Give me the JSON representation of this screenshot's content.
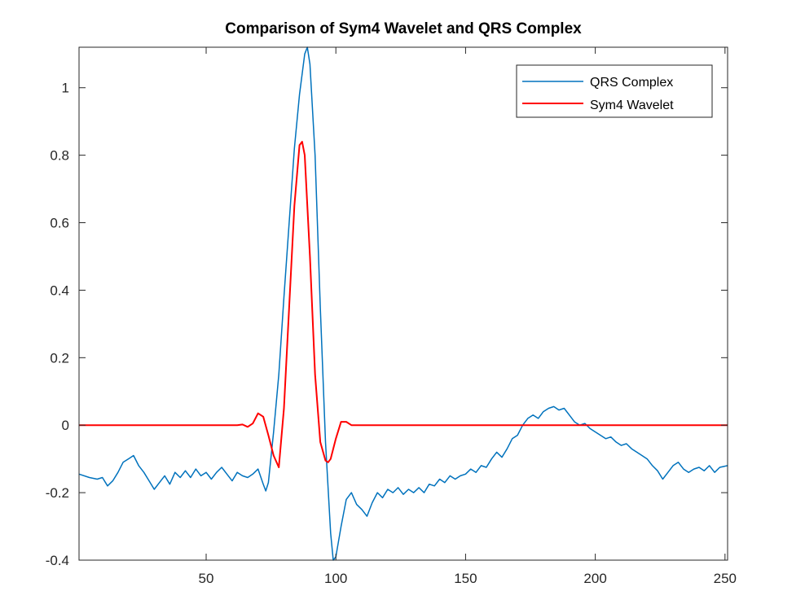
{
  "chart_data": {
    "type": "line",
    "title": "Comparison of Sym4 Wavelet and QRS Complex",
    "xlabel": "",
    "ylabel": "",
    "xlim": [
      1,
      251
    ],
    "ylim": [
      -0.4,
      1.12
    ],
    "x_ticks": [
      50,
      100,
      150,
      200,
      250
    ],
    "y_ticks": [
      -0.4,
      -0.2,
      0,
      0.2,
      0.4,
      0.6,
      0.8,
      1
    ],
    "x_tick_labels": [
      "50",
      "100",
      "150",
      "200",
      "250"
    ],
    "y_tick_labels": [
      "-0.4",
      "-0.2",
      "0",
      "0.2",
      "0.4",
      "0.6",
      "0.8",
      "1"
    ],
    "grid": false,
    "legend_position": "top-right",
    "series": [
      {
        "name": "QRS Complex",
        "color": "#0072BD",
        "x": [
          1,
          5,
          8,
          10,
          12,
          14,
          16,
          18,
          20,
          22,
          24,
          26,
          28,
          30,
          32,
          34,
          36,
          38,
          40,
          42,
          44,
          46,
          48,
          50,
          52,
          54,
          56,
          58,
          60,
          62,
          64,
          66,
          68,
          70,
          72,
          73,
          74,
          76,
          78,
          80,
          82,
          84,
          86,
          88,
          89,
          90,
          92,
          94,
          96,
          98,
          99,
          100,
          102,
          104,
          106,
          108,
          110,
          112,
          114,
          116,
          118,
          120,
          122,
          124,
          126,
          128,
          130,
          132,
          134,
          136,
          138,
          140,
          142,
          144,
          146,
          148,
          150,
          152,
          154,
          156,
          158,
          160,
          162,
          164,
          166,
          168,
          170,
          172,
          174,
          176,
          178,
          180,
          182,
          184,
          186,
          188,
          190,
          192,
          194,
          196,
          198,
          200,
          202,
          204,
          206,
          208,
          210,
          212,
          214,
          216,
          218,
          220,
          222,
          224,
          226,
          228,
          230,
          232,
          234,
          236,
          238,
          240,
          242,
          244,
          246,
          248,
          251
        ],
        "y": [
          -0.145,
          -0.155,
          -0.16,
          -0.155,
          -0.18,
          -0.165,
          -0.14,
          -0.11,
          -0.1,
          -0.09,
          -0.12,
          -0.14,
          -0.165,
          -0.19,
          -0.17,
          -0.15,
          -0.175,
          -0.14,
          -0.155,
          -0.135,
          -0.155,
          -0.13,
          -0.15,
          -0.14,
          -0.16,
          -0.14,
          -0.125,
          -0.145,
          -0.165,
          -0.14,
          -0.15,
          -0.155,
          -0.145,
          -0.13,
          -0.175,
          -0.195,
          -0.17,
          -0.02,
          0.15,
          0.38,
          0.6,
          0.82,
          0.98,
          1.1,
          1.12,
          1.07,
          0.8,
          0.35,
          -0.05,
          -0.32,
          -0.4,
          -0.39,
          -0.3,
          -0.22,
          -0.2,
          -0.235,
          -0.25,
          -0.27,
          -0.23,
          -0.2,
          -0.215,
          -0.19,
          -0.2,
          -0.185,
          -0.205,
          -0.19,
          -0.2,
          -0.185,
          -0.2,
          -0.175,
          -0.18,
          -0.16,
          -0.17,
          -0.15,
          -0.16,
          -0.15,
          -0.145,
          -0.13,
          -0.14,
          -0.12,
          -0.125,
          -0.1,
          -0.08,
          -0.095,
          -0.07,
          -0.04,
          -0.03,
          0.0,
          0.02,
          0.03,
          0.02,
          0.04,
          0.05,
          0.055,
          0.045,
          0.05,
          0.03,
          0.01,
          0.0,
          0.005,
          -0.01,
          -0.02,
          -0.03,
          -0.04,
          -0.035,
          -0.05,
          -0.06,
          -0.055,
          -0.07,
          -0.08,
          -0.09,
          -0.1,
          -0.12,
          -0.135,
          -0.16,
          -0.14,
          -0.12,
          -0.11,
          -0.13,
          -0.14,
          -0.13,
          -0.125,
          -0.135,
          -0.12,
          -0.14,
          -0.125,
          -0.12
        ]
      },
      {
        "name": "Sym4 Wavelet",
        "color": "#FF0000",
        "x": [
          1,
          62,
          64,
          66,
          68,
          70,
          72,
          74,
          76,
          78,
          80,
          82,
          84,
          86,
          87,
          88,
          90,
          92,
          94,
          96,
          97,
          98,
          100,
          102,
          104,
          106,
          251
        ],
        "y": [
          0.0,
          0.0,
          0.002,
          -0.005,
          0.005,
          0.035,
          0.025,
          -0.03,
          -0.09,
          -0.125,
          0.05,
          0.35,
          0.65,
          0.83,
          0.84,
          0.8,
          0.5,
          0.15,
          -0.05,
          -0.105,
          -0.11,
          -0.1,
          -0.04,
          0.01,
          0.01,
          0.0,
          0.0
        ]
      }
    ]
  }
}
